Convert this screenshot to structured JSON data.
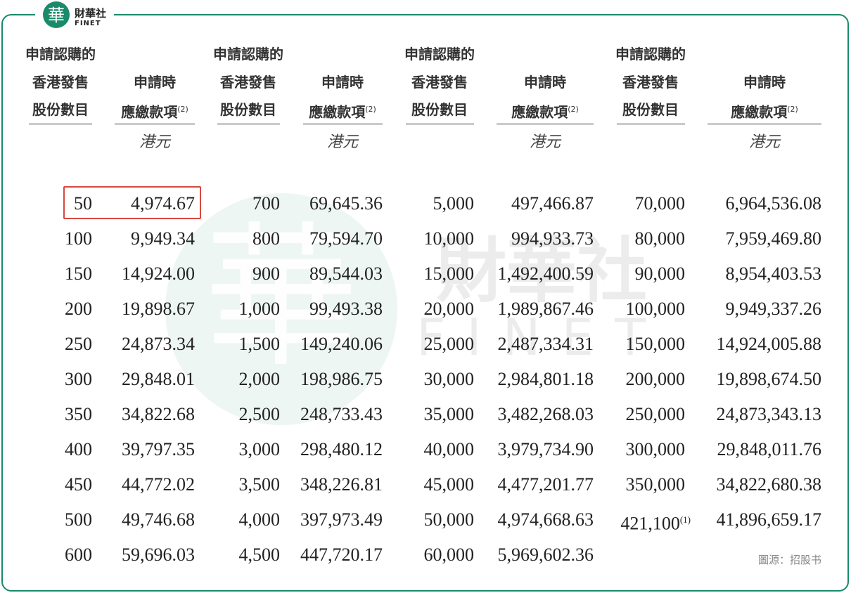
{
  "logo": {
    "mark": "華",
    "name": "財華社",
    "latin": "FINET"
  },
  "watermark": {
    "mark": "華",
    "name": "財華社",
    "latin": "FINET"
  },
  "table": {
    "columns": [
      {
        "header": [
          "申請認購的",
          "香港發售",
          "股份數目"
        ]
      },
      {
        "header": [
          "申請時",
          "應繳款項"
        ],
        "note": "(2)",
        "unit": "港元"
      },
      {
        "header": [
          "申請認購的",
          "香港發售",
          "股份數目"
        ]
      },
      {
        "header": [
          "申請時",
          "應繳款項"
        ],
        "note": "(2)",
        "unit": "港元"
      },
      {
        "header": [
          "申請認購的",
          "香港發售",
          "股份數目"
        ]
      },
      {
        "header": [
          "申請時",
          "應繳款項"
        ],
        "note": "(2)",
        "unit": "港元"
      },
      {
        "header": [
          "申請認購的",
          "香港發售",
          "股份數目"
        ]
      },
      {
        "header": [
          "申請時",
          "應繳款項"
        ],
        "note": "(2)",
        "unit": "港元"
      }
    ],
    "rows": [
      [
        "50",
        "4,974.67",
        "700",
        "69,645.36",
        "5,000",
        "497,466.87",
        "70,000",
        "6,964,536.08"
      ],
      [
        "100",
        "9,949.34",
        "800",
        "79,594.70",
        "10,000",
        "994,933.73",
        "80,000",
        "7,959,469.80"
      ],
      [
        "150",
        "14,924.00",
        "900",
        "89,544.03",
        "15,000",
        "1,492,400.59",
        "90,000",
        "8,954,403.53"
      ],
      [
        "200",
        "19,898.67",
        "1,000",
        "99,493.38",
        "20,000",
        "1,989,867.46",
        "100,000",
        "9,949,337.26"
      ],
      [
        "250",
        "24,873.34",
        "1,500",
        "149,240.06",
        "25,000",
        "2,487,334.31",
        "150,000",
        "14,924,005.88"
      ],
      [
        "300",
        "29,848.01",
        "2,000",
        "198,986.75",
        "30,000",
        "2,984,801.18",
        "200,000",
        "19,898,674.50"
      ],
      [
        "350",
        "34,822.68",
        "2,500",
        "248,733.43",
        "35,000",
        "3,482,268.03",
        "250,000",
        "24,873,343.13"
      ],
      [
        "400",
        "39,797.35",
        "3,000",
        "298,480.12",
        "40,000",
        "3,979,734.90",
        "300,000",
        "29,848,011.76"
      ],
      [
        "450",
        "44,772.02",
        "3,500",
        "348,226.81",
        "45,000",
        "4,477,201.77",
        "350,000",
        "34,822,680.38"
      ],
      [
        "500",
        "49,746.68",
        "4,000",
        "397,973.49",
        "50,000",
        "4,974,668.63",
        {
          "text": "421,100",
          "note": "(1)"
        },
        "41,896,659.17"
      ],
      [
        "600",
        "59,696.03",
        "4,500",
        "447,720.17",
        "60,000",
        "5,969,602.36"
      ]
    ]
  },
  "source": "圖源：招股书"
}
